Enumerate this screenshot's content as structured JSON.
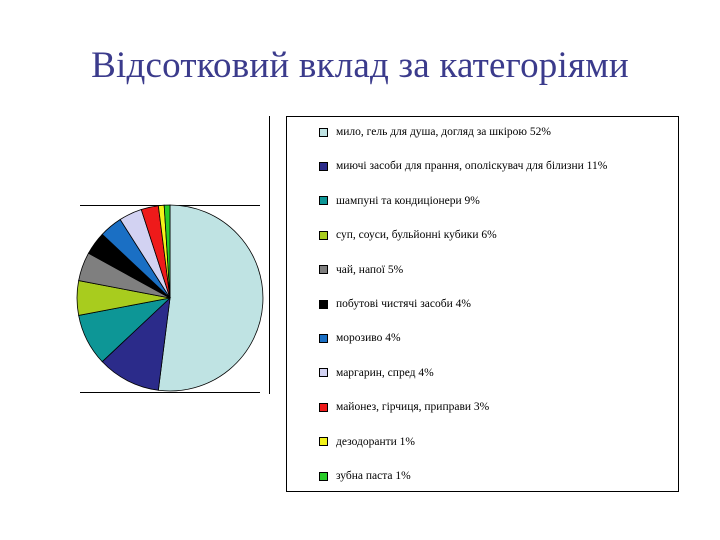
{
  "slide": {
    "title": "Відсотковий вклад за категоріями"
  },
  "chart_data": {
    "type": "pie",
    "title": "",
    "start_angle_deg": 0,
    "direction": "clockwise",
    "slices": [
      {
        "label": "мило, гель для душа, догляд за шкірою 52%",
        "value": 52,
        "color": "#bfe3e3"
      },
      {
        "label": "миючі засоби для прання, ополіскувач для білизни 11%",
        "value": 11,
        "color": "#2b2b8a"
      },
      {
        "label": "шампуні та кондиціонери 9%",
        "value": 9,
        "color": "#0d9696"
      },
      {
        "label": "суп, соуси, бульйонні кубики 6%",
        "value": 6,
        "color": "#a8cc1e"
      },
      {
        "label": "чай, напої 5%",
        "value": 5,
        "color": "#7f7f7f"
      },
      {
        "label": "побутові чистячі засоби 4%",
        "value": 4,
        "color": "#000000"
      },
      {
        "label": "морозиво 4%",
        "value": 4,
        "color": "#1a6fc4"
      },
      {
        "label": "маргарин, спред 4%",
        "value": 4,
        "color": "#d2d2f2"
      },
      {
        "label": "майонез, гірчиця, приправи 3%",
        "value": 3,
        "color": "#ee1a1a"
      },
      {
        "label": "дезодоранти 1%",
        "value": 1,
        "color": "#f2f21a"
      },
      {
        "label": "зубна паста 1%",
        "value": 1,
        "color": "#29cc29"
      }
    ],
    "legend_position": "right"
  }
}
